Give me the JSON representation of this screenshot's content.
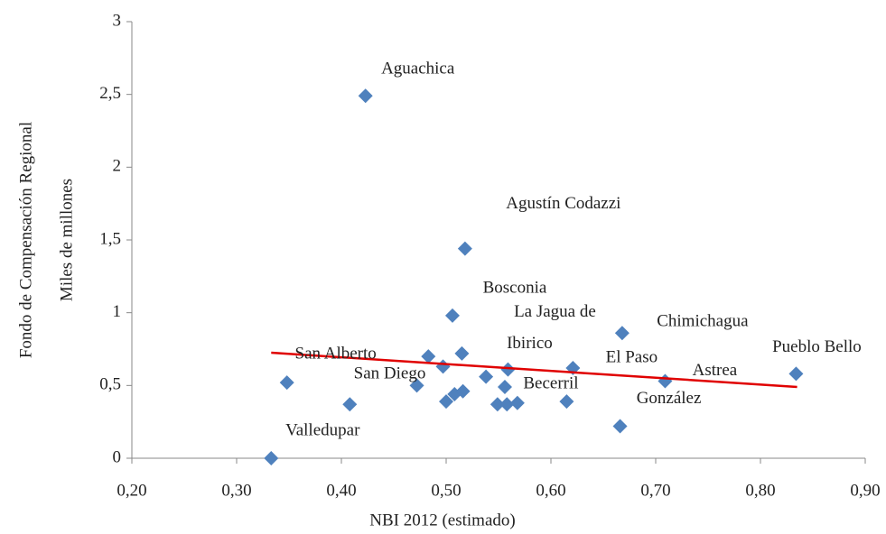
{
  "chart_data": {
    "type": "scatter",
    "x_label": "NBI 2012 (estimado)",
    "y_label": [
      "Fondo de Compensación Regional",
      "Miles de millones"
    ],
    "xlim": [
      0.2,
      0.9
    ],
    "ylim": [
      0,
      3
    ],
    "xticks": [
      {
        "value": 0.2,
        "label": "0,20"
      },
      {
        "value": 0.3,
        "label": "0,30"
      },
      {
        "value": 0.4,
        "label": "0,40"
      },
      {
        "value": 0.5,
        "label": "0,50"
      },
      {
        "value": 0.6,
        "label": "0,60"
      },
      {
        "value": 0.7,
        "label": "0,70"
      },
      {
        "value": 0.8,
        "label": "0,80"
      },
      {
        "value": 0.9,
        "label": "0,90"
      }
    ],
    "yticks": [
      0,
      {
        "value": 0.5,
        "label": "0,5"
      },
      1,
      {
        "value": 1.5,
        "label": "1,5"
      },
      2,
      {
        "value": 2.5,
        "label": "2,5"
      },
      3
    ],
    "color": "#4f81bd",
    "x": [
      0.333,
      0.348,
      0.408,
      0.423,
      0.472,
      0.483,
      0.497,
      0.5,
      0.506,
      0.508,
      0.515,
      0.516,
      0.518,
      0.538,
      0.549,
      0.556,
      0.558,
      0.559,
      0.568,
      0.615,
      0.621,
      0.666,
      0.668,
      0.709,
      0.834
    ],
    "values": [
      0,
      0.52,
      0.37,
      2.49,
      0.5,
      0.7,
      0.63,
      0.39,
      0.98,
      0.44,
      0.72,
      0.46,
      1.44,
      0.56,
      0.37,
      0.49,
      0.37,
      0.61,
      0.38,
      0.39,
      0.62,
      0.22,
      0.86,
      0.53,
      0.58
    ],
    "labels": [
      "Valledupar",
      "San Alberto",
      null,
      "Aguachica",
      "San Diego",
      null,
      null,
      null,
      "Bosconia",
      null,
      null,
      null,
      "Agustín Codazzi",
      null,
      null,
      "Becerril",
      null,
      [
        "La Jagua de",
        "Ibirico"
      ],
      null,
      null,
      "El Paso",
      "González",
      "Chimichagua",
      "Astrea",
      "Pueblo Bello"
    ],
    "trendline": {
      "color": "#e00000",
      "x": [
        0.333,
        0.835
      ],
      "y": [
        0.725,
        0.49
      ]
    }
  }
}
